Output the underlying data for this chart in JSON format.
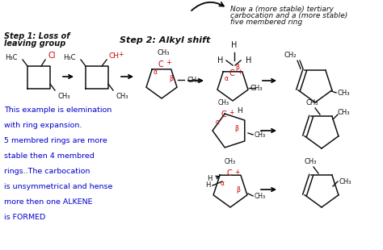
{
  "bg_color": "#ffffff",
  "title_note": "Now a (more stable) tertiary\ncarbocation and a (more stable)\nfive membered ring",
  "step1_label": "Step 1: Loss of\nleaving group",
  "step2_label": "Step 2: Alkyl shift",
  "explanation_lines": [
    "This example is elemination",
    "with ring expansion.",
    "5 membred rings are more",
    "stable then 4 membred",
    "rings..The carbocation",
    "is unsymmetrical and hense",
    "more then one ALKENE",
    "is FORMED"
  ],
  "explanation_color": "#0000cc",
  "red_color": "#cc0000",
  "black_color": "#111111",
  "arrow_color": "#111111"
}
